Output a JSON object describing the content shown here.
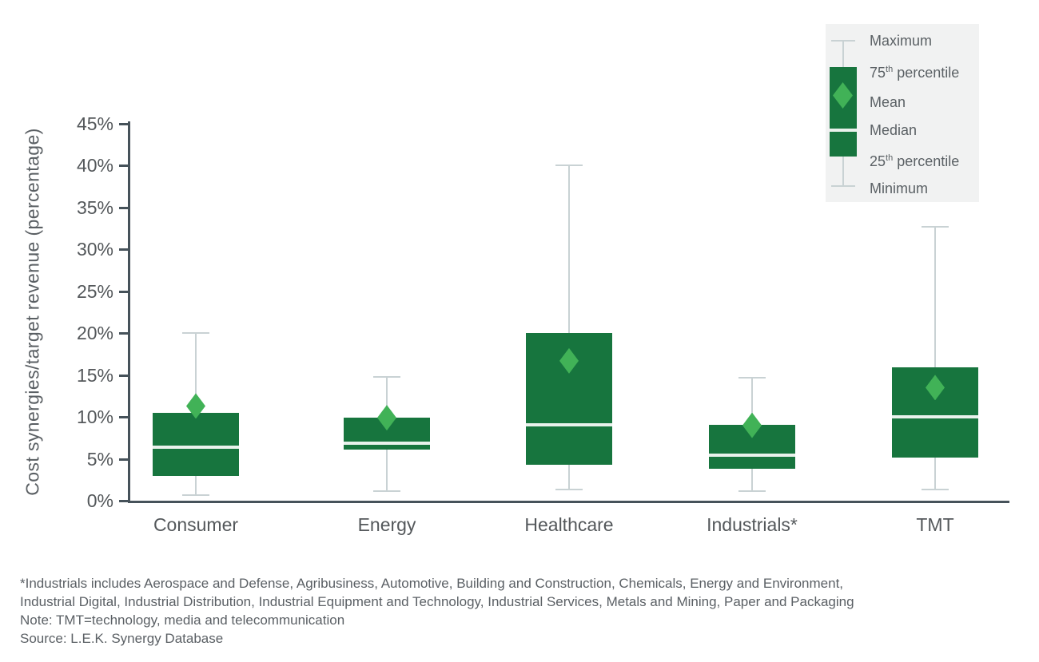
{
  "chart_data": {
    "type": "boxplot",
    "title": "",
    "xlabel": "",
    "ylabel": "Cost synergies/target revenue (percentage)",
    "ylim": [
      0,
      45
    ],
    "y_tick_values": [
      0,
      5,
      10,
      15,
      20,
      25,
      30,
      35,
      40,
      45
    ],
    "y_tick_labels": [
      "0%",
      "5%",
      "10%",
      "15%",
      "20%",
      "25%",
      "30%",
      "35%",
      "40%",
      "45%"
    ],
    "grid": false,
    "legend_position": "top-right",
    "categories": [
      "Consumer",
      "Energy",
      "Healthcare",
      "Industrials*",
      "TMT"
    ],
    "series": [
      {
        "category": "Consumer",
        "min": 0.7,
        "q1": 3.0,
        "median": 6.4,
        "mean": 11.3,
        "q3": 10.5,
        "max": 20.0
      },
      {
        "category": "Energy",
        "min": 1.1,
        "q1": 6.1,
        "median": 6.9,
        "mean": 9.9,
        "q3": 9.9,
        "max": 14.8
      },
      {
        "category": "Healthcare",
        "min": 1.3,
        "q1": 4.3,
        "median": 9.1,
        "mean": 16.7,
        "q3": 20.0,
        "max": 40.0
      },
      {
        "category": "Industrials*",
        "min": 1.1,
        "q1": 3.8,
        "median": 5.4,
        "mean": 9.0,
        "q3": 9.1,
        "max": 14.7
      },
      {
        "category": "TMT",
        "min": 1.3,
        "q1": 5.1,
        "median": 10.0,
        "mean": 13.5,
        "q3": 15.9,
        "max": 32.7
      }
    ]
  },
  "legend": {
    "items": [
      {
        "pre": "Maximum"
      },
      {
        "pre": "75",
        "sup": "th",
        "post": " percentile"
      },
      {
        "pre": "Mean"
      },
      {
        "pre": "Median"
      },
      {
        "pre": "25",
        "sup": "th",
        "post": " percentile"
      },
      {
        "pre": "Minimum"
      }
    ]
  },
  "footer": {
    "lines": [
      "*Industrials includes Aerospace and Defense, Agribusiness, Automotive, Building and Construction, Chemicals, Energy and Environment,",
      "Industrial Digital, Industrial Distribution, Industrial Equipment and Technology, Industrial Services, Metals and Mining, Paper and Packaging",
      "Note: TMT=technology, media and telecommunication",
      "Source: L.E.K. Synergy Database"
    ]
  },
  "colors": {
    "box_green": "#17753e",
    "mean_diamond_green": "#41b257",
    "whisker_gray": "#c9d2d4",
    "median_line": "#e9f2ec",
    "axis": "#46525a",
    "legend_bg": "#f1f2f2"
  }
}
